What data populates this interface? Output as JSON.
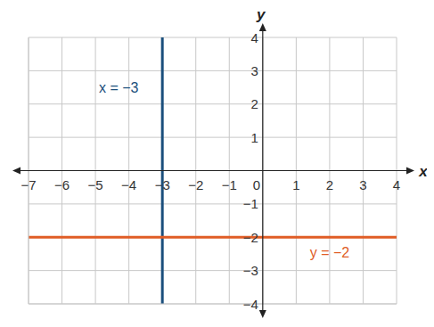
{
  "chart_data": {
    "type": "line",
    "xlabel": "x",
    "ylabel": "y",
    "xlim": [
      -7,
      4
    ],
    "ylim": [
      -4,
      4
    ],
    "xticks": [
      {
        "value": -7,
        "label": "−7"
      },
      {
        "value": -6,
        "label": "−6"
      },
      {
        "value": -5,
        "label": "−5"
      },
      {
        "value": -4,
        "label": "−4"
      },
      {
        "value": -3,
        "label": "−3"
      },
      {
        "value": -2,
        "label": "−2"
      },
      {
        "value": -1,
        "label": "−1"
      },
      0,
      1,
      2,
      3,
      4
    ],
    "yticks": [
      {
        "value": -4,
        "label": "−4"
      },
      {
        "value": -3,
        "label": "−3"
      },
      {
        "value": -2,
        "label": "−2"
      },
      {
        "value": -1,
        "label": "−1"
      },
      1,
      2,
      3,
      4
    ],
    "grid": true,
    "series": [
      {
        "name": "x = −3",
        "color": "#1b4f7c",
        "x": [
          -3,
          -3
        ],
        "values": [
          -4,
          4
        ]
      },
      {
        "name": "y = −2",
        "color": "#e05d26",
        "x": [
          -7,
          4
        ],
        "values": [
          -2,
          -2
        ]
      }
    ]
  }
}
